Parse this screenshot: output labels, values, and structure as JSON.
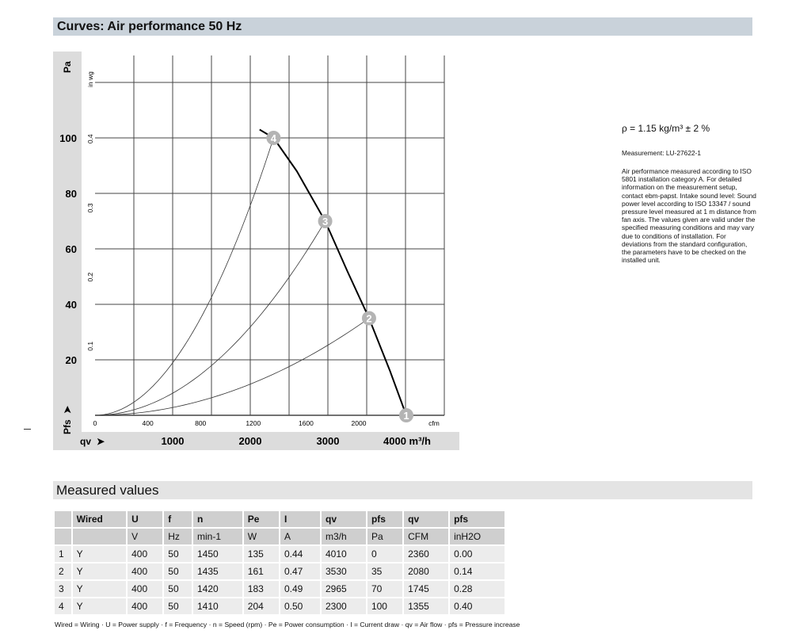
{
  "title": "Curves: Air performance 50 Hz",
  "measured_title": "Measured values",
  "side": {
    "density": "ρ = 1.15 kg/m³ ± 2 %",
    "measurement": "Measurement: LU-27622-1",
    "note": "Air performance measured according to ISO 5801 installation category A. For detailed information on the measurement setup, contact ebm-papst. Intake sound level: Sound power level according to ISO 13347 / sound pressure level measured at 1 m distance from fan axis. The values given are valid under the specified measuring conditions and may vary due to conditions of installation. For deviations from the standard configuration, the parameters have to be checked on the installed unit."
  },
  "chart_data": {
    "type": "line",
    "ylabel": "Pa",
    "ylabel2": "in wg",
    "ylabel_bottom": "Pfs",
    "xlabel": "qv",
    "xunit": "m³/h",
    "xunit2": "cfm",
    "xlim": [
      0,
      4500
    ],
    "ylim": [
      0,
      120
    ],
    "x_ticks": [
      1000,
      2000,
      3000
    ],
    "x_tick_last": "4000 m³/h",
    "y_ticks": [
      20,
      40,
      60,
      80,
      100
    ],
    "cfm_ticks": [
      0,
      400,
      800,
      1200,
      1600,
      2000
    ],
    "inwg_ticks": [
      0.1,
      0.2,
      0.3,
      0.4
    ],
    "fan_curve": {
      "x": [
        2120,
        2300,
        2600,
        2965,
        3250,
        3530,
        3800,
        4010
      ],
      "y": [
        103,
        100,
        88,
        70,
        52,
        35,
        16,
        0
      ]
    },
    "operating_points": [
      {
        "label": "1",
        "x": 4010,
        "y": 0
      },
      {
        "label": "2",
        "x": 3530,
        "y": 35
      },
      {
        "label": "3",
        "x": 2965,
        "y": 70
      },
      {
        "label": "4",
        "x": 2300,
        "y": 100
      }
    ],
    "system_curves": "parabolic through origin and points 2,3,4"
  },
  "table": {
    "headers": [
      "",
      "Wired",
      "U",
      "f",
      "n",
      "Pe",
      "I",
      "qv",
      "pfs",
      "qv",
      "pfs"
    ],
    "units": [
      "",
      "",
      "V",
      "Hz",
      "min-1",
      "W",
      "A",
      "m3/h",
      "Pa",
      "CFM",
      "inH2O"
    ],
    "rows": [
      [
        "1",
        "Y",
        "400",
        "50",
        "1450",
        "135",
        "0.44",
        "4010",
        "0",
        "2360",
        "0.00"
      ],
      [
        "2",
        "Y",
        "400",
        "50",
        "1435",
        "161",
        "0.47",
        "3530",
        "35",
        "2080",
        "0.14"
      ],
      [
        "3",
        "Y",
        "400",
        "50",
        "1420",
        "183",
        "0.49",
        "2965",
        "70",
        "1745",
        "0.28"
      ],
      [
        "4",
        "Y",
        "400",
        "50",
        "1410",
        "204",
        "0.50",
        "2300",
        "100",
        "1355",
        "0.40"
      ]
    ]
  },
  "footnote": "Wired = Wiring · U = Power supply · f = Frequency · n = Speed (rpm) · Pe = Power consumption · I = Current draw · qv = Air flow · pfs = Pressure increase",
  "colors": {
    "header": "#c9d2da",
    "chart_bg": "#dcdcdc",
    "marker": "#b4b4b4"
  }
}
